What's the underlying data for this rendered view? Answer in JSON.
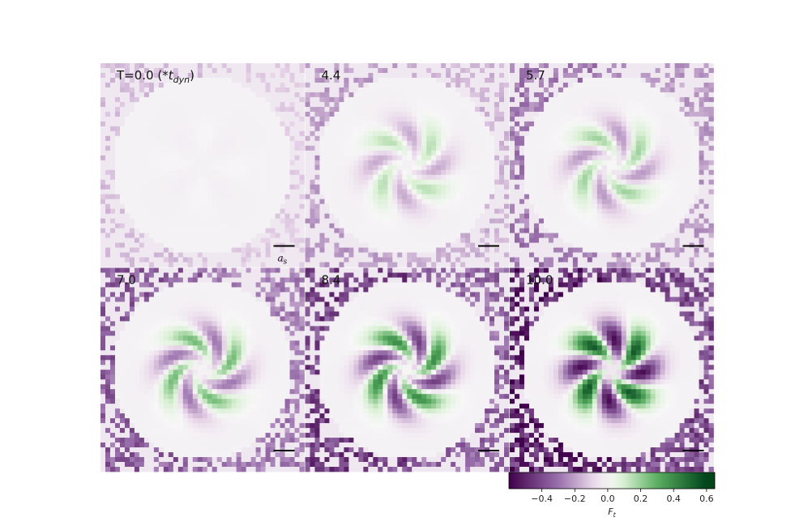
{
  "chart_data": {
    "type": "heatmap",
    "panel_grid": {
      "rows": 2,
      "cols": 3
    },
    "panels": [
      {
        "label_parts": [
          "T=0.0 (*",
          "t",
          "dyn",
          ")"
        ],
        "time": 0.0,
        "amplitude": 0.01,
        "swirl": 0.0,
        "arms": 2,
        "phase": 0.6
      },
      {
        "label_parts": [
          "4.4"
        ],
        "time": 4.4,
        "amplitude": 0.18,
        "swirl": 0.5,
        "arms": 2,
        "phase": 0.3
      },
      {
        "label_parts": [
          "5.7"
        ],
        "time": 5.7,
        "amplitude": 0.22,
        "swirl": 0.6,
        "arms": 2,
        "phase": 0.2
      },
      {
        "label_parts": [
          "7.0"
        ],
        "time": 7.0,
        "amplitude": 0.3,
        "swirl": 0.7,
        "arms": 2,
        "phase": 0.1
      },
      {
        "label_parts": [
          "8.4"
        ],
        "time": 8.4,
        "amplitude": 0.45,
        "swirl": 0.6,
        "arms": 2,
        "phase": 0.0
      },
      {
        "label_parts": [
          "10.0"
        ],
        "time": 10.0,
        "amplitude": 0.6,
        "swirl": 0.3,
        "arms": 2,
        "phase": -0.2
      }
    ],
    "colorbar": {
      "label_main": "F",
      "label_sub": "t",
      "min": -0.6,
      "max": 0.65,
      "ticks": [
        -0.4,
        -0.2,
        0.0,
        0.2,
        0.4,
        0.6
      ],
      "tick_labels": [
        "−0.4",
        "−0.2",
        "0.0",
        "0.2",
        "0.4",
        "0.6"
      ],
      "colormap": "PRGn",
      "colors": {
        "neg_dark": "#40004b",
        "neg_mid": "#9970ab",
        "neg_light": "#e7d4e8",
        "center": "#f7f7f7",
        "pos_light": "#d9f0d3",
        "pos_mid": "#5aae61",
        "pos_dark": "#00441b"
      }
    },
    "scale_bar": {
      "label_main": "a",
      "label_sub": "s"
    },
    "pixel_grid": 42
  }
}
